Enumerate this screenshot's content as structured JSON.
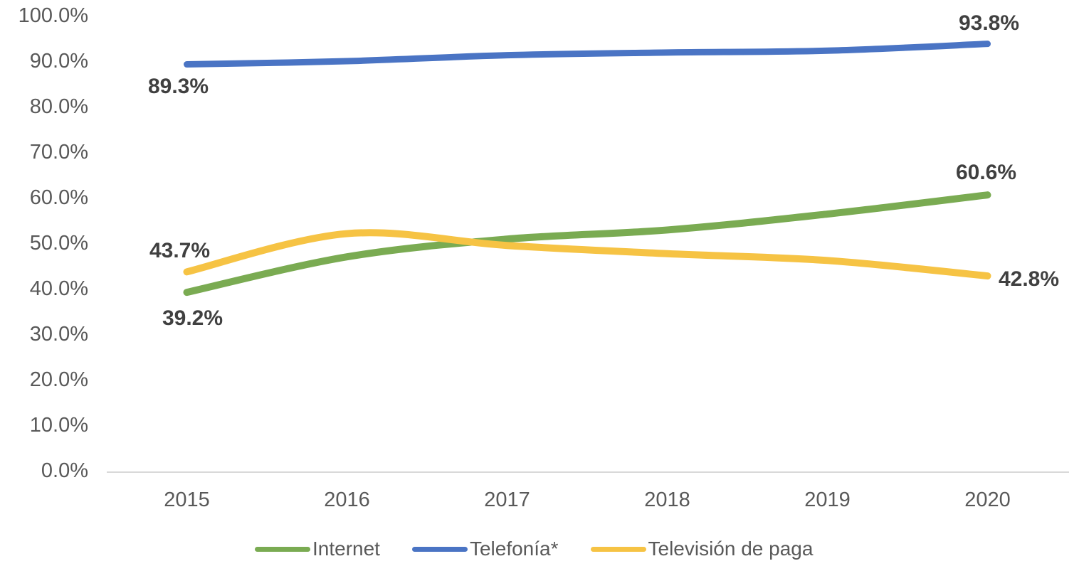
{
  "chart_data": {
    "type": "line",
    "title": "",
    "categories": [
      "2015",
      "2016",
      "2017",
      "2018",
      "2019",
      "2020"
    ],
    "series": [
      {
        "name": "Internet",
        "color": "#7AAB52",
        "values": [
          39.2,
          47.0,
          50.9,
          52.9,
          56.4,
          60.6
        ],
        "label_first": "39.2%",
        "label_last": "60.6%"
      },
      {
        "name": "Telefonía*",
        "color": "#4A74C4",
        "values": [
          89.3,
          90.0,
          91.3,
          91.9,
          92.3,
          93.8
        ],
        "label_first": "89.3%",
        "label_last": "93.8%"
      },
      {
        "name": "Televisión de paga",
        "color": "#F6C344",
        "values": [
          43.7,
          52.1,
          49.5,
          47.7,
          46.2,
          42.8
        ],
        "label_first": "43.7%",
        "label_last": "42.8%"
      }
    ],
    "y_ticks": [
      "0.0%",
      "10.0%",
      "20.0%",
      "30.0%",
      "40.0%",
      "50.0%",
      "60.0%",
      "70.0%",
      "80.0%",
      "90.0%",
      "100.0%"
    ],
    "ylim": [
      0,
      100
    ],
    "xlabel": "",
    "ylabel": "",
    "grid": false,
    "smoothed_lines": true,
    "legend_position": "bottom"
  },
  "colors": {
    "background": "#FFFFFF",
    "axis_text": "#595959",
    "data_label_text": "#404040",
    "axis_line": "#D9D9D9"
  }
}
